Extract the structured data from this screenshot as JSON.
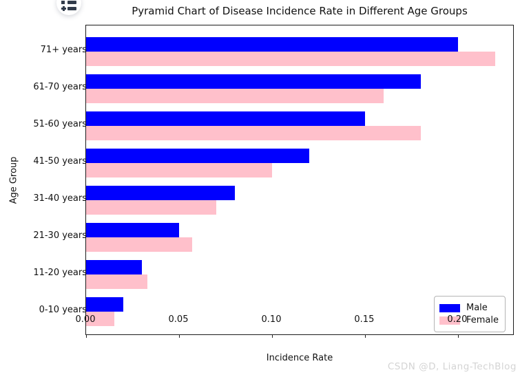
{
  "toc_button": {
    "icon": "list-icon"
  },
  "watermark": {
    "text": "CSDN @D, Liang-TechBlog",
    "color": "#d4d4d4"
  },
  "chart_data": {
    "type": "bar",
    "orientation": "horizontal",
    "title": "Pyramid Chart of Disease Incidence Rate in Different Age Groups",
    "xlabel": "Incidence Rate",
    "ylabel": "Age Group",
    "categories": [
      "71+ years",
      "61-70 years",
      "51-60 years",
      "41-50 years",
      "31-40 years",
      "21-30 years",
      "11-20 years",
      "0-10 years"
    ],
    "series": [
      {
        "name": "Male",
        "color": "#0000ff",
        "values": [
          0.2,
          0.18,
          0.15,
          0.12,
          0.08,
          0.05,
          0.03,
          0.02
        ]
      },
      {
        "name": "Female",
        "color": "#ffc0cb",
        "values": [
          0.22,
          0.16,
          0.18,
          0.1,
          0.07,
          0.057,
          0.033,
          0.015
        ]
      }
    ],
    "xlim": [
      0,
      0.2304
    ],
    "xticks": {
      "values": [
        0,
        0.05,
        0.1,
        0.15,
        0.2
      ],
      "labels": [
        "0.00",
        "0.05",
        "0.10",
        "0.15",
        "0.20"
      ]
    },
    "legend": {
      "position": "lower right",
      "entries": [
        "Male",
        "Female"
      ]
    },
    "grid": false,
    "background": "#ffffff"
  }
}
